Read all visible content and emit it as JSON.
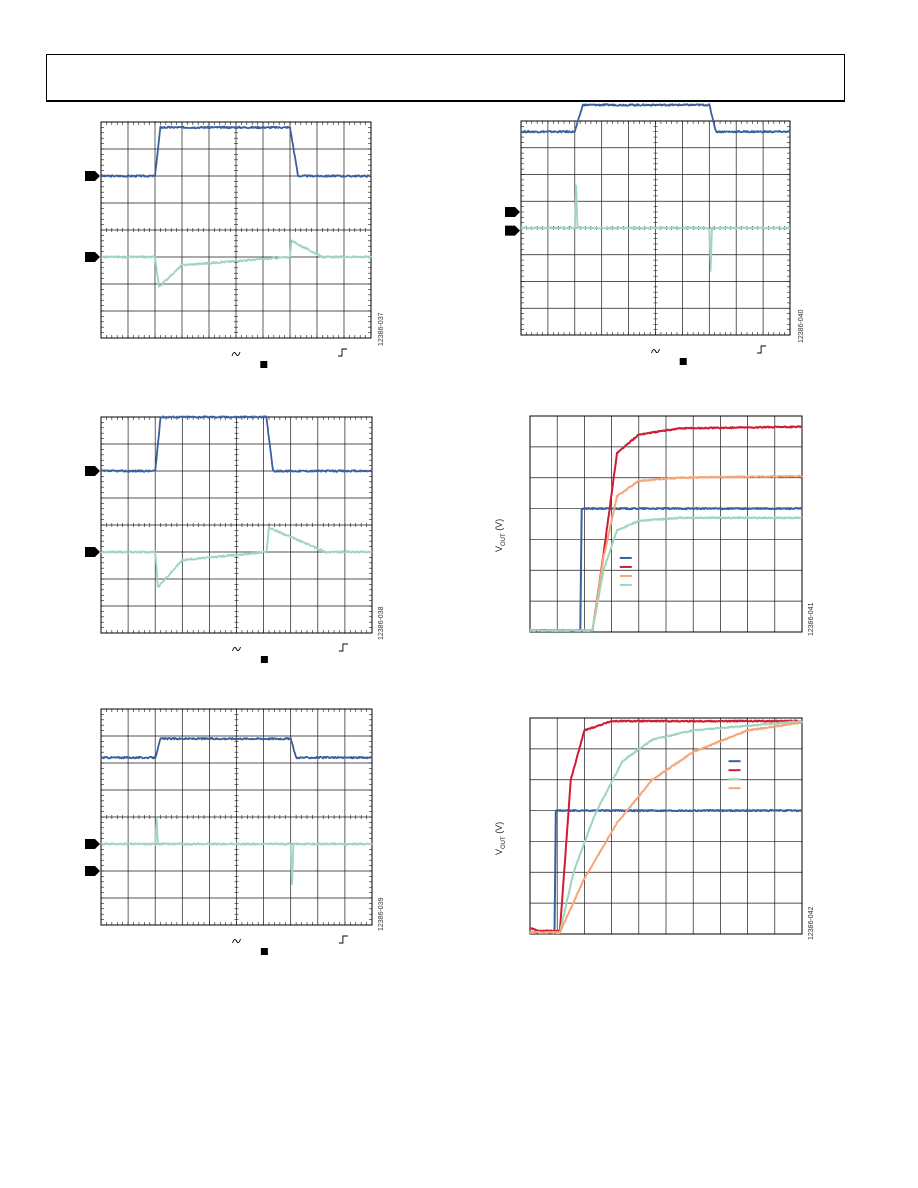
{
  "page": {
    "header_text": ""
  },
  "colors": {
    "blue": "#3a5f9e",
    "green": "#9fd4bd",
    "red": "#d01c33",
    "orange": "#f6a577",
    "grid": "#1a1a1a"
  },
  "chart_data": [
    {
      "id": "scope-1",
      "type": "line",
      "figure_id": "12386-037",
      "grid": true,
      "divisions": {
        "x": 10,
        "y": 8
      },
      "series": [
        {
          "color": "blue",
          "points": [
            [
              0,
              6.0
            ],
            [
              2.0,
              6.0
            ],
            [
              2.2,
              7.8
            ],
            [
              7.0,
              7.8
            ],
            [
              7.3,
              6.0
            ],
            [
              10,
              6.0
            ]
          ]
        },
        {
          "color": "green",
          "points": [
            [
              0,
              3.0
            ],
            [
              2.0,
              3.0
            ],
            [
              2.15,
              1.9
            ],
            [
              3.0,
              2.7
            ],
            [
              7.0,
              3.0
            ],
            [
              7.05,
              3.6
            ],
            [
              8.2,
              3.0
            ],
            [
              10,
              3.0
            ]
          ]
        }
      ],
      "markers": [
        {
          "division": 6.0
        },
        {
          "division": 3.0
        }
      ]
    },
    {
      "id": "scope-2",
      "type": "line",
      "figure_id": "12386-040",
      "grid": true,
      "divisions": {
        "x": 10,
        "y": 8
      },
      "series": [
        {
          "color": "blue",
          "points": [
            [
              0,
              7.6
            ],
            [
              2.0,
              7.6
            ],
            [
              2.3,
              8.6
            ],
            [
              7.0,
              8.6
            ],
            [
              7.25,
              7.6
            ],
            [
              10,
              7.6
            ]
          ]
        },
        {
          "color": "green",
          "points": [
            [
              0,
              4.0
            ],
            [
              2.0,
              4.0
            ],
            [
              2.05,
              5.6
            ],
            [
              2.1,
              4.0
            ],
            [
              7.0,
              4.0
            ],
            [
              7.05,
              2.4
            ],
            [
              7.1,
              4.0
            ],
            [
              10,
              4.0
            ]
          ]
        }
      ],
      "markers": [
        {
          "division": 4.6
        },
        {
          "division": 3.9
        }
      ]
    },
    {
      "id": "scope-3",
      "type": "line",
      "figure_id": "12386-038",
      "grid": true,
      "divisions": {
        "x": 10,
        "y": 8
      },
      "series": [
        {
          "color": "blue",
          "points": [
            [
              0,
              6.0
            ],
            [
              2.0,
              6.0
            ],
            [
              2.2,
              8.0
            ],
            [
              6.1,
              8.0
            ],
            [
              6.35,
              6.0
            ],
            [
              10,
              6.0
            ]
          ]
        },
        {
          "color": "green",
          "points": [
            [
              0,
              3.0
            ],
            [
              2.0,
              3.0
            ],
            [
              2.1,
              1.7
            ],
            [
              3.0,
              2.7
            ],
            [
              6.1,
              3.0
            ],
            [
              6.2,
              3.9
            ],
            [
              8.3,
              3.0
            ],
            [
              10,
              3.0
            ]
          ]
        }
      ],
      "markers": [
        {
          "division": 6.0
        },
        {
          "division": 3.0
        }
      ]
    },
    {
      "id": "startup-1",
      "type": "line",
      "figure_id": "12386-041",
      "ylabel": "V",
      "ylabel_sub": "OUT",
      "ylabel_unit": " (V)",
      "grid": true,
      "divisions": {
        "x": 10,
        "y": 7
      },
      "legend": {
        "placement": "center-left",
        "entries": [
          {
            "color": "blue"
          },
          {
            "color": "red"
          },
          {
            "color": "orange"
          },
          {
            "color": "green"
          }
        ]
      },
      "series": [
        {
          "color": "blue",
          "points": [
            [
              0,
              0.05
            ],
            [
              1.85,
              0.05
            ],
            [
              1.9,
              4.0
            ],
            [
              10,
              4.0
            ]
          ]
        },
        {
          "color": "red",
          "points": [
            [
              0,
              0.05
            ],
            [
              2.3,
              0.05
            ],
            [
              2.7,
              2.5
            ],
            [
              3.2,
              5.8
            ],
            [
              4.0,
              6.4
            ],
            [
              5.5,
              6.6
            ],
            [
              10,
              6.65
            ]
          ]
        },
        {
          "color": "orange",
          "points": [
            [
              0,
              0.05
            ],
            [
              2.3,
              0.05
            ],
            [
              2.7,
              2.4
            ],
            [
              3.2,
              4.4
            ],
            [
              4.0,
              4.9
            ],
            [
              5.5,
              5.0
            ],
            [
              10,
              5.05
            ]
          ]
        },
        {
          "color": "green",
          "points": [
            [
              0,
              0.05
            ],
            [
              2.3,
              0.05
            ],
            [
              2.7,
              2.0
            ],
            [
              3.2,
              3.3
            ],
            [
              4.0,
              3.6
            ],
            [
              5.5,
              3.7
            ],
            [
              10,
              3.7
            ]
          ]
        }
      ]
    },
    {
      "id": "startup-2",
      "type": "line",
      "figure_id": "12386-042",
      "ylabel": "V",
      "ylabel_sub": "OUT",
      "ylabel_unit": " (V)",
      "grid": true,
      "divisions": {
        "x": 10,
        "y": 7
      },
      "legend": {
        "placement": "top-right",
        "entries": [
          {
            "color": "blue"
          },
          {
            "color": "red"
          },
          {
            "color": "green"
          },
          {
            "color": "orange"
          }
        ]
      },
      "series": [
        {
          "color": "blue",
          "points": [
            [
              0,
              0.05
            ],
            [
              0.9,
              0.05
            ],
            [
              0.95,
              4.0
            ],
            [
              10,
              4.0
            ]
          ]
        },
        {
          "color": "red",
          "points": [
            [
              0,
              0.2
            ],
            [
              0.3,
              0.1
            ],
            [
              1.1,
              0.1
            ],
            [
              1.5,
              5.0
            ],
            [
              2.0,
              6.6
            ],
            [
              3.0,
              6.9
            ],
            [
              10,
              6.9
            ]
          ]
        },
        {
          "color": "green",
          "points": [
            [
              0,
              0.05
            ],
            [
              1.1,
              0.05
            ],
            [
              1.6,
              2.0
            ],
            [
              2.4,
              3.9
            ],
            [
              3.4,
              5.6
            ],
            [
              4.5,
              6.3
            ],
            [
              6.0,
              6.6
            ],
            [
              10,
              6.9
            ]
          ]
        },
        {
          "color": "orange",
          "points": [
            [
              0,
              0.05
            ],
            [
              1.1,
              0.05
            ],
            [
              2.0,
              1.8
            ],
            [
              3.2,
              3.6
            ],
            [
              4.5,
              5.0
            ],
            [
              6.0,
              5.9
            ],
            [
              8.0,
              6.6
            ],
            [
              10,
              6.85
            ]
          ]
        }
      ]
    },
    {
      "id": "scope-4",
      "type": "line",
      "figure_id": "12386-039",
      "grid": true,
      "divisions": {
        "x": 10,
        "y": 8
      },
      "series": [
        {
          "color": "blue",
          "points": [
            [
              0,
              6.2
            ],
            [
              2.0,
              6.2
            ],
            [
              2.2,
              6.9
            ],
            [
              7.0,
              6.9
            ],
            [
              7.2,
              6.2
            ],
            [
              10,
              6.2
            ]
          ]
        },
        {
          "color": "green",
          "points": [
            [
              0,
              3.0
            ],
            [
              2.0,
              3.0
            ],
            [
              2.05,
              4.0
            ],
            [
              2.1,
              3.0
            ],
            [
              7.0,
              3.0
            ],
            [
              7.05,
              1.5
            ],
            [
              7.1,
              3.0
            ],
            [
              10,
              3.0
            ]
          ]
        }
      ],
      "markers": [
        {
          "division": 3.0
        },
        {
          "division": 2.0
        }
      ]
    }
  ]
}
